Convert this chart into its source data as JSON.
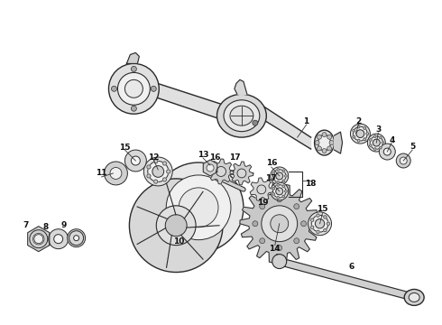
{
  "background_color": "#ffffff",
  "line_color": "#2a2a2a",
  "label_color": "#111111",
  "fig_width": 4.9,
  "fig_height": 3.6,
  "dpi": 100,
  "label_fs": 6.5,
  "components": {
    "axle_housing_color": "#e8e8e8",
    "gear_color": "#c8c8c8",
    "shaft_color": "#d0d0d0"
  }
}
